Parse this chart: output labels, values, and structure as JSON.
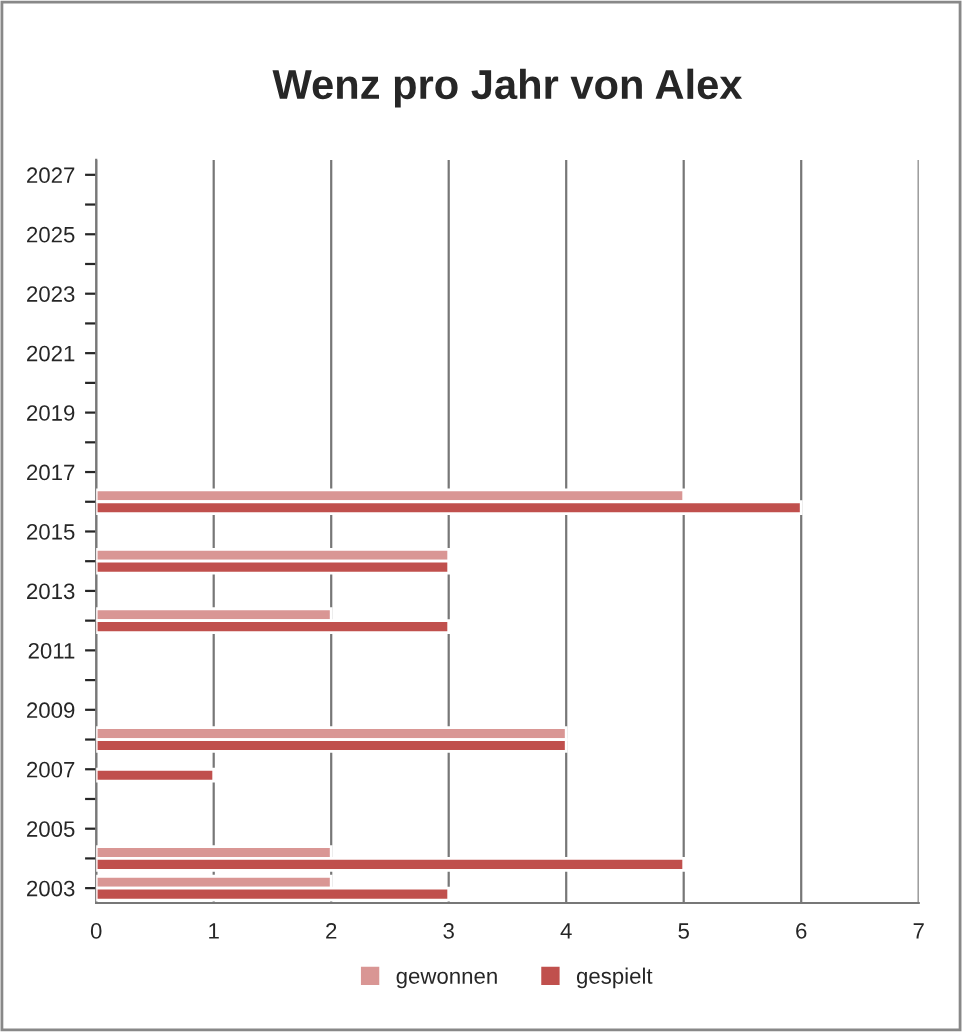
{
  "chart_data": {
    "type": "bar",
    "orientation": "horizontal",
    "title": "Wenz pro Jahr von Alex",
    "categories": [
      "2027",
      null,
      "2025",
      null,
      "2023",
      null,
      "2021",
      null,
      "2019",
      null,
      "2017",
      null,
      "2015",
      null,
      "2013",
      null,
      "2011",
      null,
      "2009",
      null,
      "2007",
      null,
      "2005",
      null,
      "2003"
    ],
    "series": [
      {
        "name": "gewonnen",
        "color": "#d99694",
        "values": [
          null,
          null,
          null,
          null,
          null,
          null,
          null,
          null,
          null,
          null,
          null,
          5,
          null,
          3,
          null,
          2,
          null,
          null,
          null,
          4,
          null,
          null,
          null,
          2,
          2
        ]
      },
      {
        "name": "gespielt",
        "color": "#c0504d",
        "values": [
          null,
          null,
          null,
          null,
          null,
          null,
          null,
          null,
          null,
          null,
          null,
          6,
          null,
          3,
          null,
          3,
          null,
          null,
          null,
          4,
          1,
          null,
          null,
          5,
          3
        ]
      }
    ],
    "xlim": [
      0,
      7
    ],
    "xticks": [
      0,
      1,
      2,
      3,
      4,
      5,
      6,
      7
    ],
    "grid": "x",
    "legend": "bottom"
  }
}
